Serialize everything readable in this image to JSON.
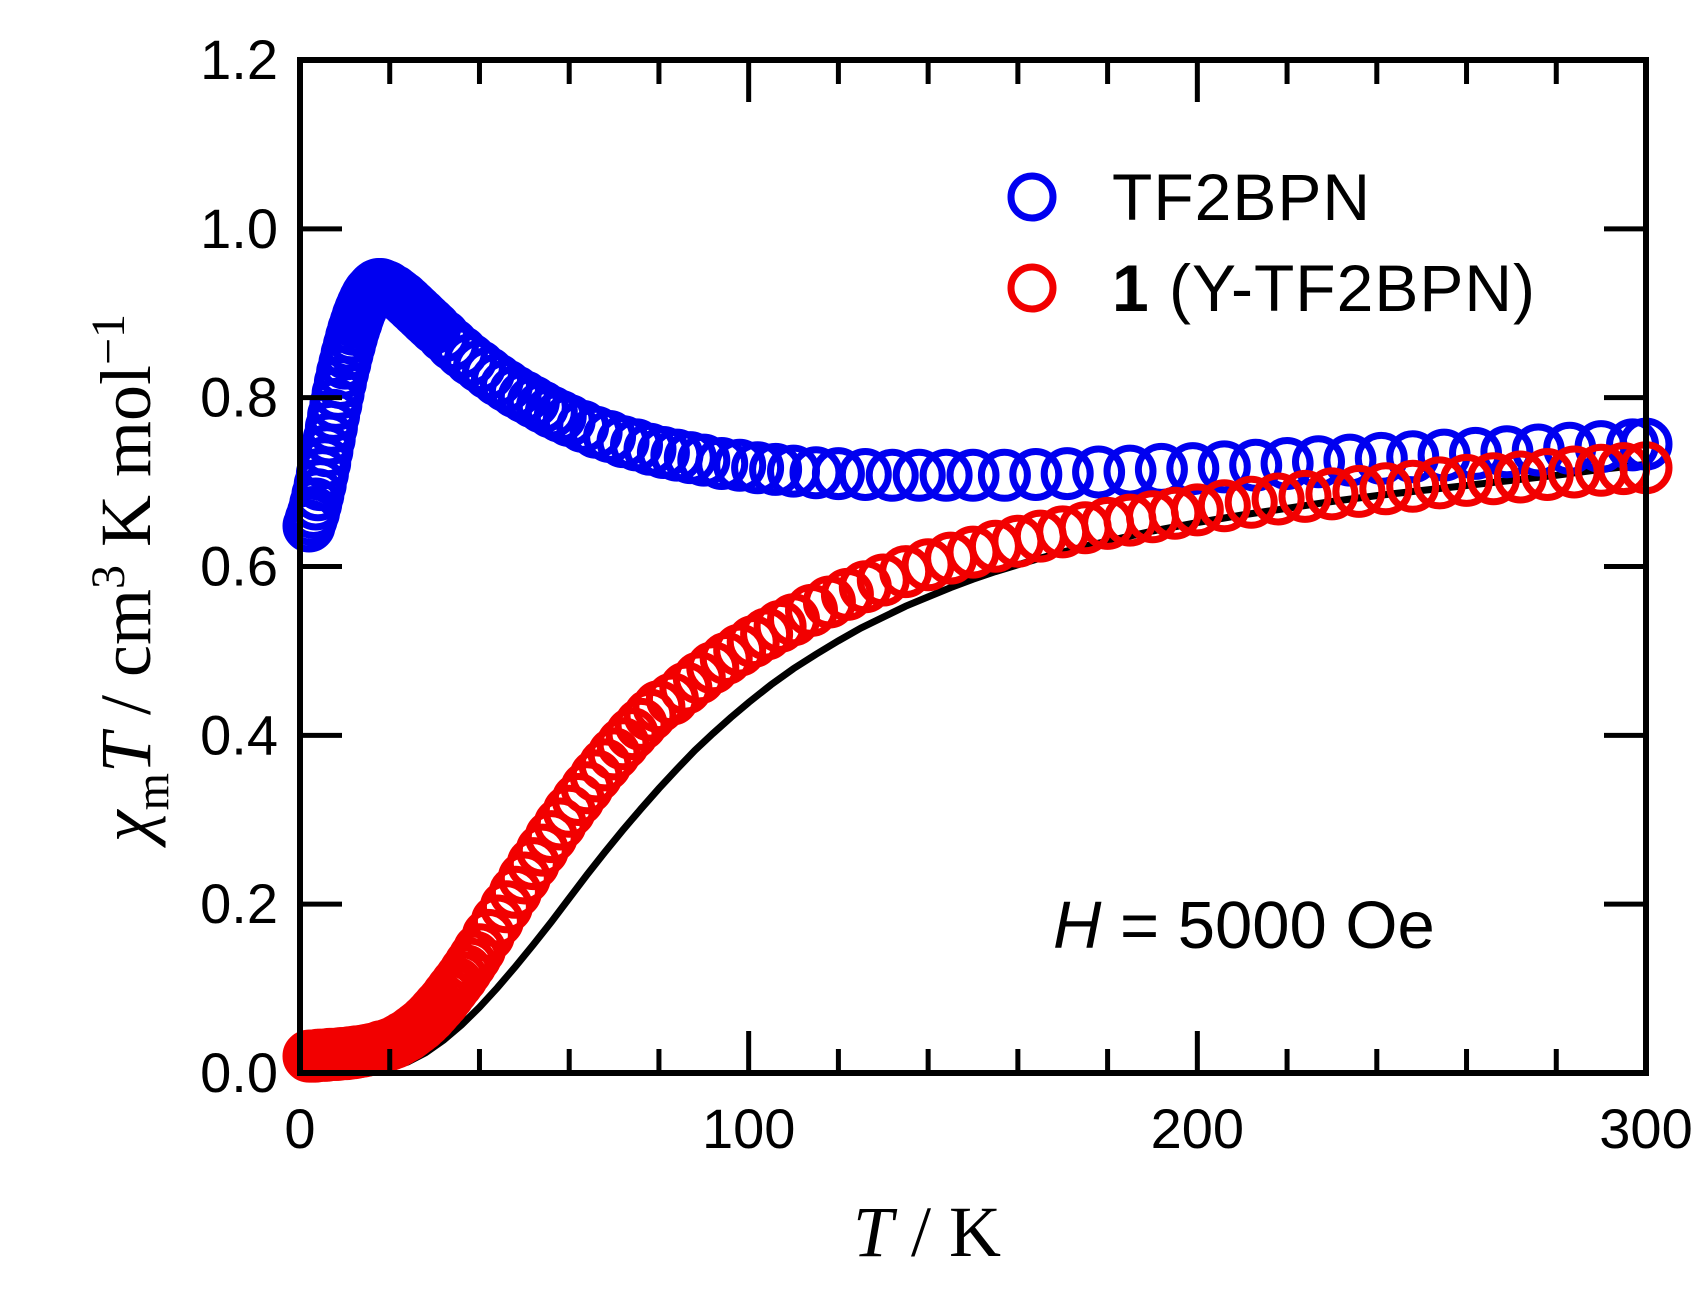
{
  "figure": {
    "background": "#ffffff",
    "frame_color": "#000000",
    "legend": {
      "items": [
        {
          "marker": "open-circle-icon",
          "color": "#0000f0",
          "label_parts": [
            {
              "t": "TF2BPN"
            }
          ]
        },
        {
          "marker": "open-circle-icon",
          "color": "#f20000",
          "label_parts": [
            {
              "t": "1",
              "weight": "bold"
            },
            {
              "t": " (Y-TF2BPN)"
            }
          ]
        }
      ]
    },
    "annotation": {
      "parts": [
        {
          "t": "H",
          "style": "italic"
        },
        {
          "t": " = 5000 Oe"
        }
      ]
    },
    "axes": {
      "x": {
        "label_parts": [
          {
            "t": "T",
            "style": "italic"
          },
          {
            "t": " / K"
          }
        ],
        "tick_labels": [
          "0",
          "100",
          "200",
          "300"
        ]
      },
      "y": {
        "label_parts": [
          {
            "t": "χ",
            "style": "italic"
          },
          {
            "t": "m",
            "pos": "sub"
          },
          {
            "t": "T",
            "style": "italic"
          },
          {
            "t": " / cm"
          },
          {
            "t": "3",
            "pos": "sup"
          },
          {
            "t": " K mol"
          },
          {
            "t": "−1",
            "pos": "sup"
          }
        ],
        "tick_labels": [
          "0.0",
          "0.2",
          "0.4",
          "0.6",
          "0.8",
          "1.0",
          "1.2"
        ]
      }
    }
  },
  "chart_data": {
    "type": "scatter",
    "title": "",
    "xlabel": "T / K",
    "ylabel": "χmT / cm3 K mol−1",
    "xlim": [
      0,
      300
    ],
    "ylim": [
      0,
      1.2
    ],
    "x_major_ticks": [
      0,
      100,
      200,
      300
    ],
    "x_minor_step": 20,
    "y_major_step": 0.2,
    "grid": false,
    "legend_position": "upper right",
    "annotation": "H = 5000 Oe",
    "series": [
      {
        "name": "TF2BPN",
        "kind": "scatter",
        "marker": "open-circle",
        "color": "#0000f0",
        "points": [
          [
            2,
            0.648
          ],
          [
            2.5,
            0.656
          ],
          [
            3,
            0.664
          ],
          [
            3.5,
            0.674
          ],
          [
            4,
            0.685
          ],
          [
            4.5,
            0.697
          ],
          [
            5,
            0.71
          ],
          [
            5.5,
            0.723
          ],
          [
            6,
            0.737
          ],
          [
            6.5,
            0.751
          ],
          [
            7,
            0.765
          ],
          [
            7.5,
            0.779
          ],
          [
            8,
            0.792
          ],
          [
            8.5,
            0.805
          ],
          [
            9,
            0.818
          ],
          [
            9.5,
            0.83
          ],
          [
            10,
            0.841
          ],
          [
            10.5,
            0.852
          ],
          [
            11,
            0.862
          ],
          [
            11.5,
            0.872
          ],
          [
            12,
            0.881
          ],
          [
            12.5,
            0.889
          ],
          [
            13,
            0.897
          ],
          [
            13.5,
            0.904
          ],
          [
            14,
            0.91
          ],
          [
            14.5,
            0.916
          ],
          [
            15,
            0.921
          ],
          [
            15.5,
            0.925
          ],
          [
            16,
            0.928
          ],
          [
            16.5,
            0.931
          ],
          [
            17,
            0.933
          ],
          [
            17.5,
            0.934
          ],
          [
            18,
            0.934
          ],
          [
            18.5,
            0.933
          ],
          [
            19,
            0.932
          ],
          [
            19.5,
            0.931
          ],
          [
            20,
            0.929
          ],
          [
            21,
            0.926
          ],
          [
            22,
            0.922
          ],
          [
            23,
            0.918
          ],
          [
            24,
            0.913
          ],
          [
            25,
            0.908
          ],
          [
            26,
            0.903
          ],
          [
            27,
            0.898
          ],
          [
            28,
            0.893
          ],
          [
            29,
            0.888
          ],
          [
            30,
            0.883
          ],
          [
            32,
            0.873
          ],
          [
            34,
            0.863
          ],
          [
            36,
            0.854
          ],
          [
            38,
            0.845
          ],
          [
            40,
            0.837
          ],
          [
            42,
            0.829
          ],
          [
            44,
            0.821
          ],
          [
            46,
            0.814
          ],
          [
            48,
            0.807
          ],
          [
            50,
            0.801
          ],
          [
            52,
            0.795
          ],
          [
            54,
            0.789
          ],
          [
            56,
            0.783
          ],
          [
            58,
            0.778
          ],
          [
            60,
            0.773
          ],
          [
            63,
            0.766
          ],
          [
            66,
            0.759
          ],
          [
            69,
            0.754
          ],
          [
            72,
            0.748
          ],
          [
            75,
            0.744
          ],
          [
            78,
            0.739
          ],
          [
            81,
            0.735
          ],
          [
            84,
            0.732
          ],
          [
            87,
            0.729
          ],
          [
            90,
            0.726
          ],
          [
            94,
            0.722
          ],
          [
            98,
            0.72
          ],
          [
            102,
            0.717
          ],
          [
            106,
            0.715
          ],
          [
            110,
            0.713
          ],
          [
            115,
            0.711
          ],
          [
            120,
            0.71
          ],
          [
            126,
            0.709
          ],
          [
            132,
            0.708
          ],
          [
            138,
            0.708
          ],
          [
            144,
            0.708
          ],
          [
            150,
            0.708
          ],
          [
            157,
            0.708
          ],
          [
            164,
            0.709
          ],
          [
            171,
            0.71
          ],
          [
            178,
            0.712
          ],
          [
            185,
            0.713
          ],
          [
            192,
            0.715
          ],
          [
            199,
            0.716
          ],
          [
            206,
            0.718
          ],
          [
            213,
            0.72
          ],
          [
            220,
            0.722
          ],
          [
            227,
            0.724
          ],
          [
            234,
            0.726
          ],
          [
            241,
            0.728
          ],
          [
            248,
            0.73
          ],
          [
            255,
            0.732
          ],
          [
            262,
            0.734
          ],
          [
            269,
            0.736
          ],
          [
            276,
            0.738
          ],
          [
            283,
            0.74
          ],
          [
            290,
            0.742
          ],
          [
            297,
            0.744
          ],
          [
            300,
            0.745
          ]
        ]
      },
      {
        "name": "1 (Y-TF2BPN)",
        "kind": "scatter",
        "marker": "open-circle",
        "color": "#f20000",
        "points": [
          [
            2,
            0.02
          ],
          [
            2.5,
            0.02
          ],
          [
            3,
            0.02
          ],
          [
            3.5,
            0.02
          ],
          [
            4,
            0.021
          ],
          [
            4.5,
            0.021
          ],
          [
            5,
            0.021
          ],
          [
            5.5,
            0.021
          ],
          [
            6,
            0.021
          ],
          [
            6.5,
            0.022
          ],
          [
            7,
            0.022
          ],
          [
            7.5,
            0.022
          ],
          [
            8,
            0.022
          ],
          [
            8.5,
            0.022
          ],
          [
            9,
            0.023
          ],
          [
            9.5,
            0.023
          ],
          [
            10,
            0.023
          ],
          [
            10.5,
            0.023
          ],
          [
            11,
            0.024
          ],
          [
            11.5,
            0.024
          ],
          [
            12,
            0.024
          ],
          [
            12.5,
            0.025
          ],
          [
            13,
            0.025
          ],
          [
            14,
            0.026
          ],
          [
            15,
            0.027
          ],
          [
            16,
            0.028
          ],
          [
            17,
            0.029
          ],
          [
            18,
            0.031
          ],
          [
            19,
            0.032
          ],
          [
            20,
            0.034
          ],
          [
            21,
            0.036
          ],
          [
            22,
            0.039
          ],
          [
            23,
            0.042
          ],
          [
            24,
            0.045
          ],
          [
            25,
            0.049
          ],
          [
            26,
            0.053
          ],
          [
            27,
            0.057
          ],
          [
            28,
            0.062
          ],
          [
            29,
            0.067
          ],
          [
            30,
            0.073
          ],
          [
            31,
            0.079
          ],
          [
            32,
            0.085
          ],
          [
            33,
            0.092
          ],
          [
            34,
            0.099
          ],
          [
            35,
            0.106
          ],
          [
            36,
            0.113
          ],
          [
            37,
            0.121
          ],
          [
            38,
            0.129
          ],
          [
            39,
            0.137
          ],
          [
            40,
            0.146
          ],
          [
            42,
            0.163
          ],
          [
            44,
            0.18
          ],
          [
            46,
            0.197
          ],
          [
            48,
            0.214
          ],
          [
            50,
            0.231
          ],
          [
            52,
            0.248
          ],
          [
            54,
            0.264
          ],
          [
            56,
            0.28
          ],
          [
            58,
            0.295
          ],
          [
            60,
            0.31
          ],
          [
            62,
            0.324
          ],
          [
            64,
            0.338
          ],
          [
            66,
            0.352
          ],
          [
            68,
            0.365
          ],
          [
            70,
            0.378
          ],
          [
            72,
            0.39
          ],
          [
            74,
            0.402
          ],
          [
            76,
            0.413
          ],
          [
            78,
            0.424
          ],
          [
            80,
            0.434
          ],
          [
            83,
            0.443
          ],
          [
            86,
            0.456
          ],
          [
            89,
            0.468
          ],
          [
            92,
            0.48
          ],
          [
            95,
            0.491
          ],
          [
            98,
            0.501
          ],
          [
            101,
            0.511
          ],
          [
            104,
            0.52
          ],
          [
            107,
            0.529
          ],
          [
            110,
            0.537
          ],
          [
            114,
            0.548
          ],
          [
            118,
            0.558
          ],
          [
            122,
            0.567
          ],
          [
            126,
            0.576
          ],
          [
            130,
            0.584
          ],
          [
            135,
            0.594
          ],
          [
            140,
            0.602
          ],
          [
            145,
            0.61
          ],
          [
            150,
            0.617
          ],
          [
            155,
            0.624
          ],
          [
            160,
            0.63
          ],
          [
            165,
            0.636
          ],
          [
            170,
            0.641
          ],
          [
            175,
            0.646
          ],
          [
            180,
            0.651
          ],
          [
            185,
            0.655
          ],
          [
            190,
            0.659
          ],
          [
            195,
            0.663
          ],
          [
            200,
            0.667
          ],
          [
            206,
            0.672
          ],
          [
            212,
            0.676
          ],
          [
            218,
            0.68
          ],
          [
            224,
            0.683
          ],
          [
            230,
            0.686
          ],
          [
            236,
            0.689
          ],
          [
            242,
            0.692
          ],
          [
            248,
            0.695
          ],
          [
            254,
            0.699
          ],
          [
            260,
            0.702
          ],
          [
            266,
            0.704
          ],
          [
            272,
            0.706
          ],
          [
            278,
            0.709
          ],
          [
            284,
            0.712
          ],
          [
            290,
            0.714
          ],
          [
            295,
            0.716
          ],
          [
            300,
            0.717
          ]
        ]
      },
      {
        "name": "fit-curve",
        "kind": "line",
        "marker": "none",
        "color": "#000000",
        "points": [
          [
            16,
            0.002
          ],
          [
            20,
            0.006
          ],
          [
            24,
            0.013
          ],
          [
            28,
            0.024
          ],
          [
            32,
            0.039
          ],
          [
            36,
            0.057
          ],
          [
            40,
            0.078
          ],
          [
            44,
            0.101
          ],
          [
            48,
            0.126
          ],
          [
            52,
            0.152
          ],
          [
            56,
            0.179
          ],
          [
            60,
            0.207
          ],
          [
            64,
            0.235
          ],
          [
            68,
            0.262
          ],
          [
            72,
            0.288
          ],
          [
            76,
            0.313
          ],
          [
            80,
            0.337
          ],
          [
            84,
            0.36
          ],
          [
            88,
            0.382
          ],
          [
            92,
            0.402
          ],
          [
            96,
            0.421
          ],
          [
            100,
            0.439
          ],
          [
            105,
            0.46
          ],
          [
            110,
            0.479
          ],
          [
            115,
            0.496
          ],
          [
            120,
            0.512
          ],
          [
            125,
            0.527
          ],
          [
            130,
            0.54
          ],
          [
            135,
            0.553
          ],
          [
            140,
            0.564
          ],
          [
            145,
            0.575
          ],
          [
            150,
            0.585
          ],
          [
            155,
            0.594
          ],
          [
            160,
            0.602
          ],
          [
            165,
            0.61
          ],
          [
            170,
            0.617
          ],
          [
            175,
            0.624
          ],
          [
            180,
            0.63
          ],
          [
            185,
            0.636
          ],
          [
            190,
            0.642
          ],
          [
            195,
            0.647
          ],
          [
            200,
            0.652
          ],
          [
            210,
            0.661
          ],
          [
            220,
            0.669
          ],
          [
            230,
            0.677
          ],
          [
            240,
            0.684
          ],
          [
            250,
            0.69
          ],
          [
            260,
            0.696
          ],
          [
            270,
            0.702
          ],
          [
            280,
            0.708
          ],
          [
            290,
            0.715
          ],
          [
            300,
            0.721
          ]
        ]
      }
    ]
  }
}
